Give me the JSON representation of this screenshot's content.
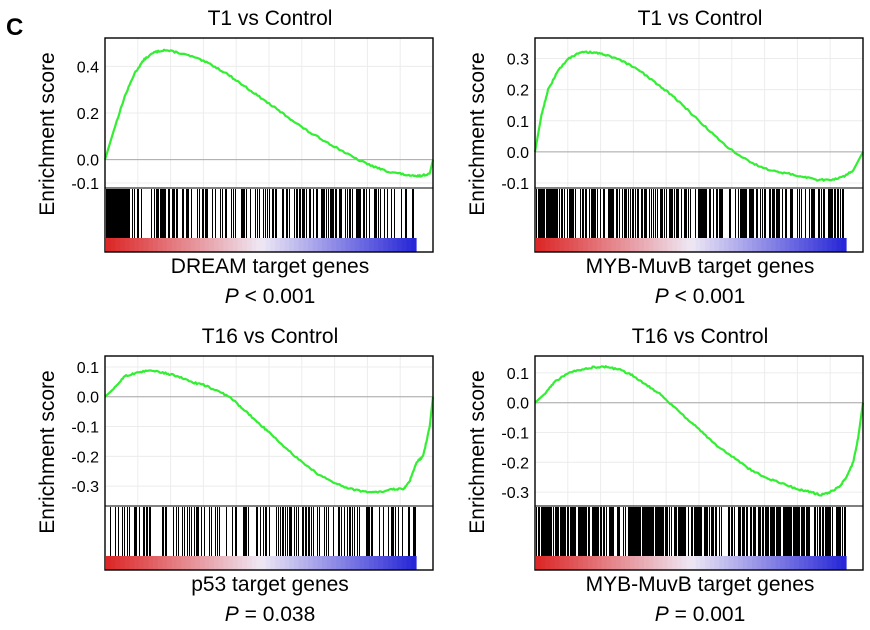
{
  "panel_label": "C",
  "chart_data": [
    {
      "type": "line",
      "title": "T1 vs Control",
      "ylabel": "Enrichment score",
      "xlabel": "DREAM target genes",
      "p_label": "P",
      "p_value_text": "< 0.001",
      "ylim": [
        -0.1,
        0.5
      ],
      "yticks": [
        0.4,
        0.2,
        0.0,
        -0.1
      ],
      "ytick_labels": [
        "0.4",
        "0.2",
        "0.0",
        "-0.1"
      ],
      "x": [
        0,
        0.03,
        0.06,
        0.09,
        0.12,
        0.15,
        0.18,
        0.22,
        0.27,
        0.32,
        0.37,
        0.42,
        0.47,
        0.52,
        0.57,
        0.62,
        0.67,
        0.72,
        0.77,
        0.82,
        0.86,
        0.9,
        0.93,
        0.96,
        0.99,
        1.0
      ],
      "y": [
        0.0,
        0.14,
        0.27,
        0.37,
        0.43,
        0.46,
        0.47,
        0.46,
        0.44,
        0.41,
        0.37,
        0.32,
        0.27,
        0.22,
        0.17,
        0.12,
        0.08,
        0.04,
        0.0,
        -0.03,
        -0.05,
        -0.06,
        -0.07,
        -0.07,
        -0.06,
        0.0
      ],
      "hit_density": [
        1,
        0.2,
        0.65,
        0.3,
        0.45,
        0.3,
        0.4,
        0.35,
        0.45,
        0.7,
        0.55,
        0.35,
        0.25
      ],
      "line_color": "#33ee33"
    },
    {
      "type": "line",
      "title": "T1 vs Control",
      "ylabel": "Enrichment score",
      "xlabel": "MYB-MuvB target genes",
      "p_label": "P",
      "p_value_text": "< 0.001",
      "ylim": [
        -0.1,
        0.35
      ],
      "yticks": [
        0.3,
        0.2,
        0.1,
        0.0,
        -0.1
      ],
      "ytick_labels": [
        "0.3",
        "0.2",
        "0.1",
        "0.0",
        "-0.1"
      ],
      "x": [
        0,
        0.02,
        0.04,
        0.07,
        0.1,
        0.14,
        0.18,
        0.22,
        0.27,
        0.32,
        0.37,
        0.42,
        0.47,
        0.52,
        0.57,
        0.62,
        0.67,
        0.72,
        0.77,
        0.82,
        0.86,
        0.9,
        0.94,
        0.97,
        1.0
      ],
      "y": [
        0.0,
        0.12,
        0.2,
        0.26,
        0.3,
        0.32,
        0.32,
        0.31,
        0.29,
        0.26,
        0.22,
        0.18,
        0.13,
        0.08,
        0.03,
        -0.01,
        -0.04,
        -0.06,
        -0.07,
        -0.08,
        -0.09,
        -0.09,
        -0.08,
        -0.06,
        0.0
      ],
      "hit_density": [
        0.85,
        0.6,
        0.7,
        0.5,
        0.65,
        0.55,
        0.6,
        0.5,
        0.6,
        0.55,
        0.5,
        0.55,
        0.6
      ],
      "line_color": "#33ee33"
    },
    {
      "type": "line",
      "title": "T16 vs Control",
      "ylabel": "Enrichment score",
      "xlabel": "p53 target genes",
      "p_label": "P",
      "p_value_text": "= 0.038",
      "ylim": [
        -0.35,
        0.12
      ],
      "yticks": [
        0.1,
        0.0,
        -0.1,
        -0.2,
        -0.3
      ],
      "ytick_labels": [
        "0.1",
        "0.0",
        "-0.1",
        "-0.2",
        "-0.3"
      ],
      "x": [
        0,
        0.03,
        0.06,
        0.1,
        0.14,
        0.18,
        0.22,
        0.26,
        0.3,
        0.34,
        0.38,
        0.42,
        0.46,
        0.5,
        0.55,
        0.6,
        0.65,
        0.7,
        0.75,
        0.8,
        0.84,
        0.88,
        0.91,
        0.93,
        0.95,
        0.97,
        0.99,
        1.0
      ],
      "y": [
        0.0,
        0.03,
        0.07,
        0.08,
        0.09,
        0.08,
        0.07,
        0.05,
        0.04,
        0.02,
        0.0,
        -0.04,
        -0.08,
        -0.12,
        -0.17,
        -0.22,
        -0.26,
        -0.29,
        -0.31,
        -0.32,
        -0.32,
        -0.31,
        -0.31,
        -0.28,
        -0.22,
        -0.2,
        -0.1,
        0.0
      ],
      "hit_density": [
        0.3,
        0.55,
        0.35,
        0.4,
        0.25,
        0.35,
        0.3,
        0.5,
        0.35,
        0.3,
        0.25,
        0.45,
        0.4
      ],
      "line_color": "#33ee33"
    },
    {
      "type": "line",
      "title": "T16 vs Control",
      "ylabel": "Enrichment score",
      "xlabel": "MYB-MuvB target genes",
      "p_label": "P",
      "p_value_text": "= 0.001",
      "ylim": [
        -0.33,
        0.14
      ],
      "yticks": [
        0.1,
        0.0,
        -0.1,
        -0.2,
        -0.3
      ],
      "ytick_labels": [
        "0.1",
        "0.0",
        "-0.1",
        "-0.2",
        "-0.3"
      ],
      "x": [
        0,
        0.03,
        0.06,
        0.1,
        0.14,
        0.18,
        0.22,
        0.26,
        0.3,
        0.34,
        0.38,
        0.42,
        0.46,
        0.5,
        0.55,
        0.6,
        0.65,
        0.7,
        0.75,
        0.8,
        0.84,
        0.87,
        0.9,
        0.93,
        0.95,
        0.97,
        0.985,
        1.0
      ],
      "y": [
        0.0,
        0.03,
        0.07,
        0.1,
        0.11,
        0.12,
        0.12,
        0.11,
        0.09,
        0.06,
        0.03,
        -0.01,
        -0.05,
        -0.09,
        -0.14,
        -0.18,
        -0.22,
        -0.25,
        -0.27,
        -0.29,
        -0.3,
        -0.31,
        -0.3,
        -0.28,
        -0.25,
        -0.2,
        -0.12,
        0.0
      ],
      "hit_density": [
        0.85,
        0.7,
        0.75,
        0.65,
        0.8,
        0.6,
        0.7,
        0.65,
        0.75,
        0.8,
        0.85,
        0.7,
        0.75
      ],
      "line_color": "#33ee33"
    }
  ]
}
